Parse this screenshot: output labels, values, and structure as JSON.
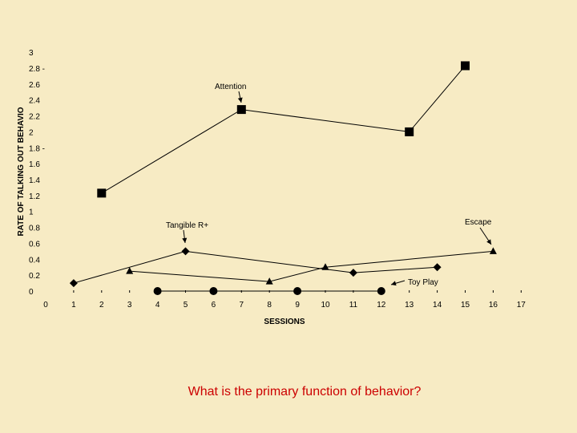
{
  "question": "What is the primary function of behavior?",
  "colors": {
    "background": "#f7ebc4",
    "question": "#cc0000",
    "ink": "#000000"
  },
  "chart_data": {
    "type": "line",
    "xlabel": "SESSIONS",
    "ylabel": "RATE OF TALKING OUT BEHAVIO",
    "xlim": [
      0,
      17
    ],
    "ylim": [
      0,
      3
    ],
    "x_ticks": [
      "0",
      "1",
      "2",
      "3",
      "4",
      "5",
      "6",
      "7",
      "8",
      "9",
      "10",
      "11",
      "12",
      "13",
      "14",
      "15",
      "16",
      "17"
    ],
    "y_ticks": [
      "0",
      "0.2",
      "0.4",
      "0.6",
      "0.8",
      "1",
      "1.2",
      "1.4",
      "1.6",
      "1.8 -",
      "2",
      "2.2",
      "2.4",
      "2.6",
      "2.8 -",
      "3"
    ],
    "grid": false,
    "series": [
      {
        "name": "Attention",
        "marker": "square",
        "x": [
          2,
          7,
          13,
          15
        ],
        "y": [
          1.23,
          2.28,
          2.0,
          2.83
        ]
      },
      {
        "name": "Tangible R+",
        "marker": "diamond",
        "x": [
          1,
          5,
          11,
          14
        ],
        "y": [
          0.1,
          0.5,
          0.23,
          0.3
        ]
      },
      {
        "name": "Escape",
        "marker": "triangle",
        "x": [
          3,
          8,
          10,
          16
        ],
        "y": [
          0.25,
          0.12,
          0.3,
          0.5
        ]
      },
      {
        "name": "Toy Play",
        "marker": "circle",
        "x": [
          4,
          6,
          9,
          12
        ],
        "y": [
          0,
          0,
          0,
          0
        ]
      }
    ],
    "annotations": [
      {
        "series": "Attention",
        "text": "Attention",
        "x": 7,
        "y": 2.28
      },
      {
        "series": "Tangible R+",
        "text": "Tangible R+",
        "x": 5,
        "y": 0.5
      },
      {
        "series": "Escape",
        "text": "Escape",
        "x": 16,
        "y": 0.5
      },
      {
        "series": "Toy Play",
        "text": "Toy Play",
        "x": 12,
        "y": 0
      }
    ]
  }
}
